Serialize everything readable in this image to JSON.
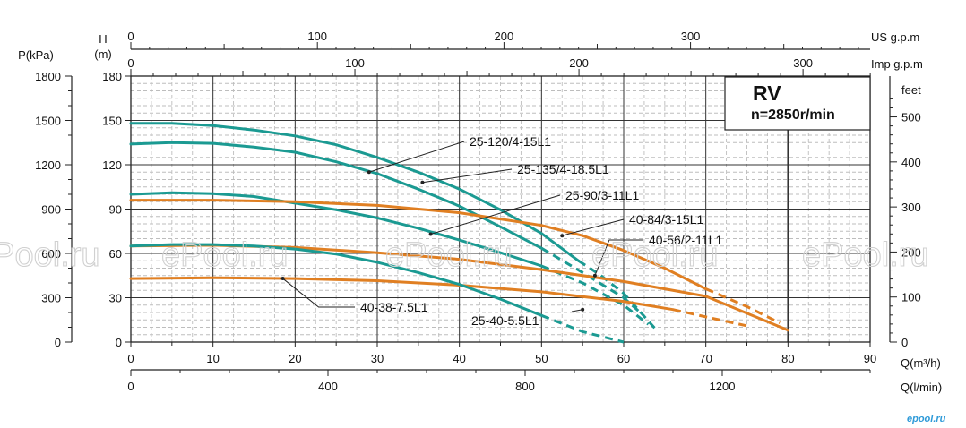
{
  "chart_data": {
    "type": "line",
    "title": "RV",
    "subtitle": "n=2850r/min",
    "x_axis_bottom": {
      "label": "Q(m³/h)",
      "range": [
        0,
        90
      ],
      "ticks": [
        "0",
        "10",
        "20",
        "30",
        "40",
        "50",
        "60",
        "70",
        "80",
        "90"
      ]
    },
    "x_axis_bottom2": {
      "label": "Q(l/min)",
      "range": [
        0,
        1500
      ],
      "ticks": [
        "0",
        "400",
        "800",
        "1200"
      ]
    },
    "x_axis_top_us": {
      "label": "US g.p.m",
      "ticks": [
        "0",
        "100",
        "200",
        "300"
      ]
    },
    "x_axis_top_imp": {
      "label": "Imp g.p.m",
      "ticks": [
        "0",
        "100",
        "200",
        "300"
      ]
    },
    "y_axis_left_h": {
      "label_line1": "H",
      "label_line2": "(m)",
      "range": [
        0,
        180
      ],
      "ticks": [
        "0",
        "30",
        "60",
        "90",
        "120",
        "150",
        "180"
      ]
    },
    "y_axis_left_p": {
      "label": "P(kPa)",
      "ticks": [
        "0",
        "300",
        "600",
        "900",
        "1200",
        "1500",
        "1800"
      ]
    },
    "y_axis_right": {
      "label": "feet",
      "ticks": [
        "0",
        "100",
        "200",
        "300",
        "400",
        "500"
      ]
    },
    "grid": true,
    "series": [
      {
        "name": "25-120/4-15L1",
        "color": "#1b9a92",
        "solid": [
          [
            0,
            148
          ],
          [
            5,
            148
          ],
          [
            10,
            146.5
          ],
          [
            15,
            143.5
          ],
          [
            20,
            139.5
          ],
          [
            25,
            133.5
          ],
          [
            30,
            125
          ],
          [
            35,
            115
          ],
          [
            40,
            103.5
          ],
          [
            45,
            89.5
          ],
          [
            50,
            73.5
          ],
          [
            54.5,
            55
          ]
        ],
        "dashed": [
          [
            54.5,
            55
          ],
          [
            57,
            46
          ],
          [
            60,
            33
          ],
          [
            64,
            8
          ]
        ]
      },
      {
        "name": "25-135/4-18.5L1",
        "color": "#1b9a92",
        "solid": [
          [
            0,
            134
          ],
          [
            5,
            135
          ],
          [
            10,
            134.5
          ],
          [
            15,
            132
          ],
          [
            20,
            128.5
          ],
          [
            25,
            122
          ],
          [
            30,
            114
          ],
          [
            35,
            103.5
          ],
          [
            40,
            92
          ],
          [
            45,
            78
          ],
          [
            50,
            63.5
          ]
        ],
        "dashed": [
          [
            50,
            63.5
          ],
          [
            55,
            47
          ],
          [
            60,
            30
          ],
          [
            62,
            20
          ]
        ]
      },
      {
        "name": "25-90/3-11L1",
        "color": "#1b9a92",
        "solid": [
          [
            0,
            100
          ],
          [
            5,
            101
          ],
          [
            10,
            100.5
          ],
          [
            15,
            98.5
          ],
          [
            20,
            94
          ],
          [
            25,
            89.5
          ],
          [
            30,
            84
          ],
          [
            35,
            77
          ],
          [
            40,
            69
          ],
          [
            45,
            60.5
          ],
          [
            50,
            51.5
          ]
        ],
        "dashed": [
          [
            50,
            51.5
          ],
          [
            55,
            40
          ],
          [
            60,
            25
          ],
          [
            63,
            12
          ]
        ]
      },
      {
        "name": "40-84/3-15L1",
        "color": "#e07f22",
        "solid": [
          [
            0,
            96
          ],
          [
            10,
            96
          ],
          [
            20,
            95
          ],
          [
            30,
            92.5
          ],
          [
            40,
            87.5
          ],
          [
            50,
            79
          ],
          [
            55,
            72
          ],
          [
            60,
            62
          ],
          [
            65,
            50
          ],
          [
            70,
            36
          ]
        ],
        "dashed": [
          [
            70,
            36
          ],
          [
            75,
            24
          ],
          [
            79,
            13
          ]
        ]
      },
      {
        "name": "40-56/2-11L1",
        "color": "#e07f22",
        "solid": [
          [
            0,
            65
          ],
          [
            10,
            65.5
          ],
          [
            20,
            64
          ],
          [
            30,
            60.5
          ],
          [
            40,
            56
          ],
          [
            50,
            49
          ],
          [
            60,
            41
          ],
          [
            70,
            31
          ],
          [
            80,
            8
          ]
        ],
        "dashed": []
      },
      {
        "name": "40-38-7.5L1",
        "color": "#e07f22",
        "solid": [
          [
            0,
            43
          ],
          [
            10,
            43.5
          ],
          [
            20,
            43
          ],
          [
            30,
            41.5
          ],
          [
            40,
            38.5
          ],
          [
            50,
            34
          ],
          [
            60,
            27.5
          ],
          [
            66,
            22
          ]
        ],
        "dashed": [
          [
            66,
            22
          ],
          [
            70,
            17
          ],
          [
            75,
            11
          ]
        ]
      },
      {
        "name": "25-40-5.5L1",
        "color": "#1b9a92",
        "solid": [
          [
            0,
            65
          ],
          [
            5,
            66
          ],
          [
            10,
            66
          ],
          [
            15,
            65
          ],
          [
            20,
            63
          ],
          [
            25,
            59.5
          ],
          [
            30,
            54
          ],
          [
            35,
            47
          ],
          [
            40,
            39
          ],
          [
            45,
            29
          ],
          [
            50,
            18
          ]
        ],
        "dashed": [
          [
            50,
            18
          ],
          [
            55,
            7
          ],
          [
            60,
            0
          ]
        ]
      }
    ],
    "annotations": [
      {
        "text": "25-120/4-15L1",
        "point": [
          29,
          115
        ]
      },
      {
        "text": "25-135/4-18.5L1",
        "point": [
          35.5,
          108
        ]
      },
      {
        "text": "25-90/3-11L1",
        "point": [
          36.5,
          73
        ]
      },
      {
        "text": "40-84/3-15L1",
        "point": [
          52.5,
          72
        ]
      },
      {
        "text": "40-56/2-11L1",
        "point": [
          56.5,
          45
        ]
      },
      {
        "text": "40-38-7.5L1",
        "point": [
          18.5,
          43
        ]
      },
      {
        "text": "25-40-5.5L1",
        "point": [
          55,
          22
        ]
      }
    ],
    "watermark": "ePool.ru",
    "logo": "epool.ru"
  }
}
